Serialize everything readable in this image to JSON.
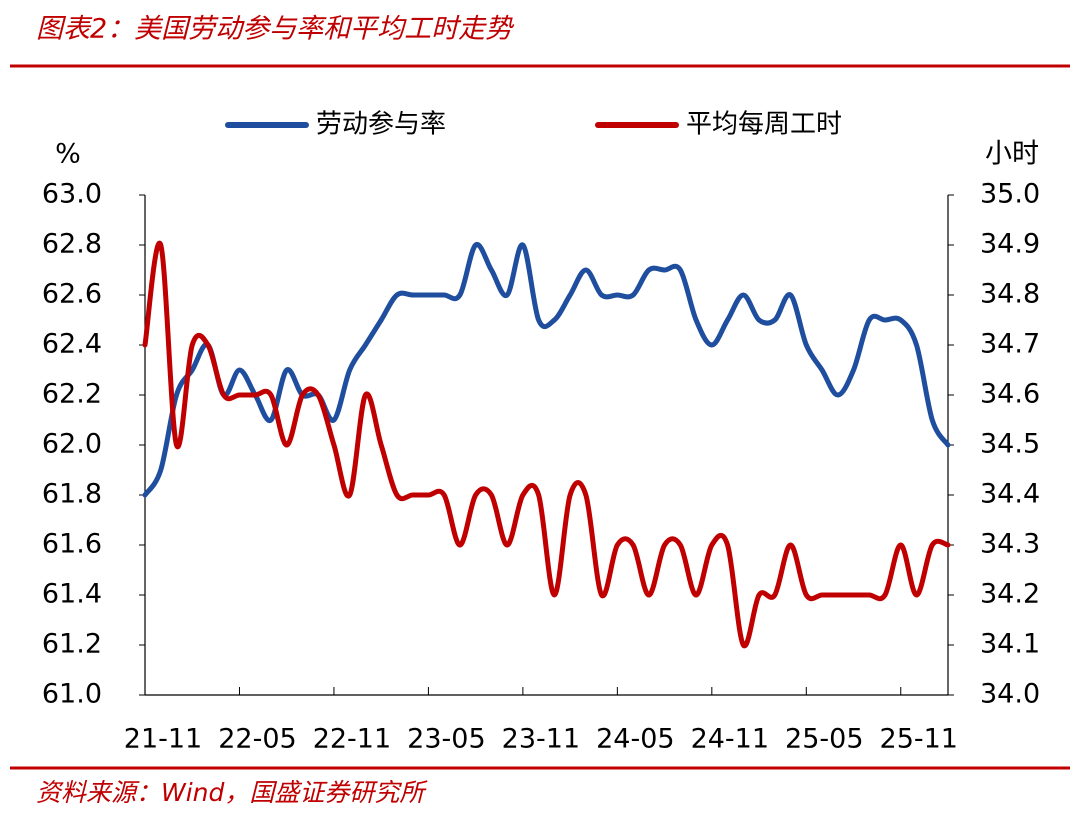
{
  "chart_data": {
    "type": "line",
    "title": "图表2：美国劳动参与率和平均工时走势",
    "source": "资料来源：Wind，国盛证券研究所",
    "y_label": "%",
    "y2_label": "小时",
    "categories": [
      "21-11",
      null,
      null,
      null,
      null,
      null,
      "22-05",
      null,
      null,
      null,
      null,
      null,
      "22-11",
      null,
      null,
      null,
      null,
      null,
      "23-05",
      null,
      null,
      null,
      null,
      null,
      "23-11",
      null,
      null,
      null,
      null,
      null,
      "24-05",
      null,
      null,
      null,
      null,
      null,
      "24-11",
      null,
      null,
      null,
      null,
      null,
      "25-05",
      null,
      null,
      null,
      null,
      null,
      "25-11",
      null,
      null,
      null
    ],
    "series": [
      {
        "name": "劳动参与率",
        "color": "#1f4e9e",
        "values": [
          61.8,
          61.9,
          62.2,
          62.3,
          62.4,
          62.2,
          62.3,
          62.2,
          62.1,
          62.3,
          62.2,
          62.2,
          62.1,
          62.3,
          62.4,
          62.5,
          62.6,
          62.6,
          62.6,
          62.6,
          62.6,
          62.8,
          62.7,
          62.6,
          62.8,
          62.5,
          62.5,
          62.6,
          62.7,
          62.6,
          62.6,
          62.6,
          62.7,
          62.7,
          62.7,
          62.5,
          62.4,
          62.5,
          62.6,
          62.5,
          62.5,
          62.6,
          62.4,
          62.3,
          62.2,
          62.3,
          62.5,
          62.5,
          62.5,
          62.4,
          62.1,
          62.0
        ]
      },
      {
        "name": "平均每周工时",
        "color": "#c00000",
        "axis": "y2",
        "values": [
          34.7,
          34.9,
          34.5,
          34.7,
          34.7,
          34.6,
          34.6,
          34.6,
          34.6,
          34.5,
          34.6,
          34.6,
          34.5,
          34.4,
          34.6,
          34.5,
          34.4,
          34.4,
          34.4,
          34.4,
          34.3,
          34.4,
          34.4,
          34.3,
          34.4,
          34.4,
          34.2,
          34.4,
          34.4,
          34.2,
          34.3,
          34.3,
          34.2,
          34.3,
          34.3,
          34.2,
          34.3,
          34.3,
          34.1,
          34.2,
          34.2,
          34.3,
          34.2,
          34.2,
          34.2,
          34.2,
          34.2,
          34.2,
          34.3,
          34.2,
          34.3,
          34.3
        ]
      }
    ],
    "ylim": [
      61.0,
      63.0
    ],
    "yticks": [
      {
        "value": 61.0,
        "label": "61.0"
      },
      {
        "value": 61.2,
        "label": "61.2"
      },
      {
        "value": 61.4,
        "label": "61.4"
      },
      {
        "value": 61.6,
        "label": "61.6"
      },
      {
        "value": 61.8,
        "label": "61.8"
      },
      {
        "value": 62.0,
        "label": "62.0"
      },
      {
        "value": 62.2,
        "label": "62.2"
      },
      {
        "value": 62.4,
        "label": "62.4"
      },
      {
        "value": 62.6,
        "label": "62.6"
      },
      {
        "value": 62.8,
        "label": "62.8"
      },
      {
        "value": 63.0,
        "label": "63.0"
      }
    ],
    "y2lim": [
      34.0,
      35.0
    ],
    "y2ticks": [
      {
        "value": 34.0,
        "label": "34.0"
      },
      {
        "value": 34.1,
        "label": "34.1"
      },
      {
        "value": 34.2,
        "label": "34.2"
      },
      {
        "value": 34.3,
        "label": "34.3"
      },
      {
        "value": 34.4,
        "label": "34.4"
      },
      {
        "value": 34.5,
        "label": "34.5"
      },
      {
        "value": 34.6,
        "label": "34.6"
      },
      {
        "value": 34.7,
        "label": "34.7"
      },
      {
        "value": 34.8,
        "label": "34.8"
      },
      {
        "value": 34.9,
        "label": "34.9"
      },
      {
        "value": 35.0,
        "label": "35.0"
      }
    ],
    "legend": "top"
  }
}
